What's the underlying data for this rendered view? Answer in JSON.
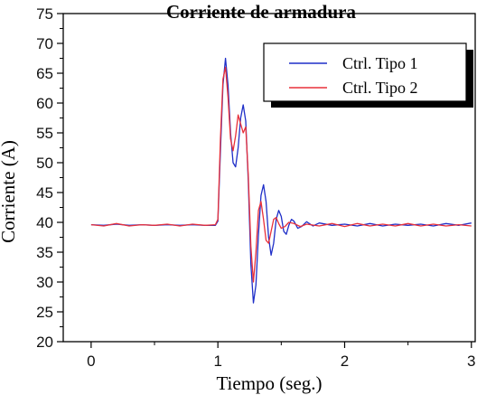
{
  "chart_data": {
    "type": "line",
    "title": "Corriente de armadura",
    "xlabel": "Tiempo (seg.)",
    "ylabel": "Corriente (A)",
    "xlim": [
      -0.22,
      3.03
    ],
    "ylim": [
      20,
      75
    ],
    "xticks": [
      0,
      1,
      2,
      3
    ],
    "yticks": [
      20,
      25,
      30,
      35,
      40,
      45,
      50,
      55,
      60,
      65,
      70,
      75
    ],
    "grid": false,
    "legend_position": "top-right",
    "series": [
      {
        "name": "Ctrl. Tipo 1",
        "color": "#1f2fc8",
        "points": [
          [
            0.0,
            39.6
          ],
          [
            0.1,
            39.5
          ],
          [
            0.2,
            39.7
          ],
          [
            0.3,
            39.5
          ],
          [
            0.4,
            39.6
          ],
          [
            0.5,
            39.5
          ],
          [
            0.6,
            39.6
          ],
          [
            0.7,
            39.5
          ],
          [
            0.8,
            39.6
          ],
          [
            0.9,
            39.5
          ],
          [
            0.98,
            39.5
          ],
          [
            1.0,
            40.2
          ],
          [
            1.02,
            52.0
          ],
          [
            1.04,
            63.0
          ],
          [
            1.06,
            67.5
          ],
          [
            1.08,
            63.0
          ],
          [
            1.1,
            55.0
          ],
          [
            1.12,
            50.0
          ],
          [
            1.14,
            49.3
          ],
          [
            1.16,
            52.5
          ],
          [
            1.18,
            57.5
          ],
          [
            1.2,
            59.7
          ],
          [
            1.22,
            57.0
          ],
          [
            1.24,
            47.0
          ],
          [
            1.26,
            33.0
          ],
          [
            1.28,
            26.5
          ],
          [
            1.3,
            29.5
          ],
          [
            1.32,
            38.0
          ],
          [
            1.34,
            44.5
          ],
          [
            1.36,
            46.3
          ],
          [
            1.38,
            43.5
          ],
          [
            1.4,
            37.5
          ],
          [
            1.42,
            34.5
          ],
          [
            1.44,
            36.5
          ],
          [
            1.46,
            40.5
          ],
          [
            1.48,
            42.0
          ],
          [
            1.5,
            41.0
          ],
          [
            1.52,
            38.5
          ],
          [
            1.54,
            38.0
          ],
          [
            1.56,
            39.5
          ],
          [
            1.58,
            40.5
          ],
          [
            1.6,
            40.2
          ],
          [
            1.63,
            39.0
          ],
          [
            1.66,
            39.3
          ],
          [
            1.7,
            40.1
          ],
          [
            1.75,
            39.4
          ],
          [
            1.8,
            39.9
          ],
          [
            1.9,
            39.5
          ],
          [
            2.0,
            39.7
          ],
          [
            2.1,
            39.4
          ],
          [
            2.2,
            39.8
          ],
          [
            2.3,
            39.4
          ],
          [
            2.4,
            39.7
          ],
          [
            2.5,
            39.5
          ],
          [
            2.6,
            39.7
          ],
          [
            2.7,
            39.4
          ],
          [
            2.8,
            39.8
          ],
          [
            2.9,
            39.5
          ],
          [
            3.0,
            39.9
          ]
        ]
      },
      {
        "name": "Ctrl. Tipo 2",
        "color": "#e8303a",
        "points": [
          [
            0.0,
            39.6
          ],
          [
            0.1,
            39.4
          ],
          [
            0.2,
            39.8
          ],
          [
            0.3,
            39.4
          ],
          [
            0.4,
            39.6
          ],
          [
            0.5,
            39.5
          ],
          [
            0.6,
            39.7
          ],
          [
            0.7,
            39.4
          ],
          [
            0.8,
            39.7
          ],
          [
            0.9,
            39.5
          ],
          [
            0.98,
            39.6
          ],
          [
            1.0,
            40.5
          ],
          [
            1.02,
            54.0
          ],
          [
            1.04,
            64.0
          ],
          [
            1.06,
            66.0
          ],
          [
            1.08,
            61.0
          ],
          [
            1.1,
            54.0
          ],
          [
            1.12,
            52.0
          ],
          [
            1.14,
            54.5
          ],
          [
            1.16,
            58.0
          ],
          [
            1.18,
            56.5
          ],
          [
            1.2,
            55.0
          ],
          [
            1.22,
            56.0
          ],
          [
            1.24,
            48.0
          ],
          [
            1.26,
            36.0
          ],
          [
            1.28,
            30.0
          ],
          [
            1.3,
            35.0
          ],
          [
            1.32,
            42.0
          ],
          [
            1.34,
            43.5
          ],
          [
            1.36,
            40.5
          ],
          [
            1.38,
            37.0
          ],
          [
            1.4,
            36.5
          ],
          [
            1.42,
            38.5
          ],
          [
            1.44,
            40.5
          ],
          [
            1.46,
            40.8
          ],
          [
            1.48,
            39.8
          ],
          [
            1.5,
            39.0
          ],
          [
            1.53,
            39.3
          ],
          [
            1.56,
            40.0
          ],
          [
            1.6,
            39.8
          ],
          [
            1.65,
            39.3
          ],
          [
            1.7,
            39.7
          ],
          [
            1.8,
            39.4
          ],
          [
            1.9,
            39.8
          ],
          [
            2.0,
            39.3
          ],
          [
            2.1,
            39.8
          ],
          [
            2.2,
            39.4
          ],
          [
            2.3,
            39.7
          ],
          [
            2.4,
            39.4
          ],
          [
            2.5,
            39.8
          ],
          [
            2.6,
            39.4
          ],
          [
            2.7,
            39.7
          ],
          [
            2.8,
            39.4
          ],
          [
            2.9,
            39.6
          ],
          [
            3.0,
            39.4
          ]
        ]
      }
    ]
  }
}
